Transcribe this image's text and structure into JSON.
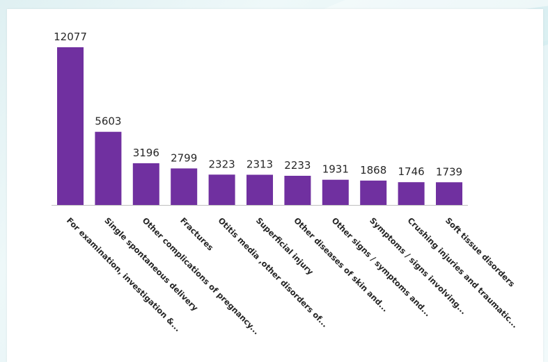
{
  "chart_data": {
    "type": "bar",
    "categories": [
      "For examination, investigation &...",
      "Single spontaneous delivery",
      "Other complications of pregnancy...",
      "Fractures",
      "Otitis media ,other disorders of...",
      "Superficial injury",
      "Other diseases of skin and...",
      "Other signs / symptoms and...",
      "Symptoms / signs involving...",
      "Crushing injuries and traumatic...",
      "Soft tissue disorders"
    ],
    "values": [
      12077,
      5603,
      3196,
      2799,
      2323,
      2313,
      2233,
      1931,
      1868,
      1746,
      1739
    ],
    "value_labels": [
      "12077",
      "5603",
      "3196",
      "2799",
      "2323",
      "2313",
      "2233",
      "1931",
      "1868",
      "1746",
      "1739"
    ],
    "ylim": [
      0,
      12077
    ],
    "grid": false,
    "legend": "none",
    "colors": {
      "bar": "#7030a0"
    }
  }
}
